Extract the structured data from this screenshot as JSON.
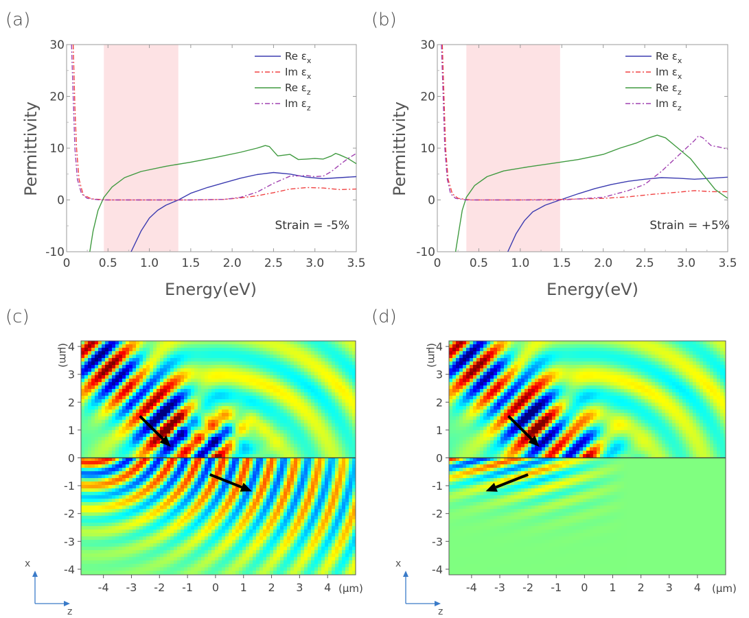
{
  "panels": [
    {
      "id": "a",
      "letter": "(a)",
      "strain_label": "Strain = -5%"
    },
    {
      "id": "b",
      "letter": "(b)",
      "strain_label": "Strain = +5%"
    },
    {
      "id": "c",
      "letter": "(c)"
    },
    {
      "id": "d",
      "letter": "(d)"
    }
  ],
  "colors": {
    "re_x": "#3b3bb0",
    "im_x": "#f04040",
    "re_z": "#3f9a3f",
    "im_z": "#a040b0",
    "band": "#fde2e4",
    "arrow": "#000000"
  },
  "axes_labels": {
    "coord_x": "x",
    "coord_z": "z",
    "unit_top": "(μm)",
    "unit_right": "(μm)"
  },
  "chart_data": [
    {
      "type": "line",
      "panel": "a",
      "xlabel": "Energy(eV)",
      "ylabel": "Permittivity",
      "xlim": [
        0,
        3.5
      ],
      "ylim": [
        -10,
        30
      ],
      "xticks": [
        "0",
        "0.5",
        "1.0",
        "1.5",
        "2.0",
        "2.5",
        "3.0",
        "3.5"
      ],
      "yticks": [
        "-10",
        "0",
        "10",
        "20",
        "30"
      ],
      "highlight_band": [
        0.45,
        1.35
      ],
      "annotation": "Strain = -5%",
      "legend_position": "top-right",
      "series": [
        {
          "name": "Re εx",
          "legend_main": "Re ε",
          "legend_sub": "x",
          "style": "solid",
          "color_key": "re_x",
          "x": [
            0.78,
            0.9,
            1.0,
            1.1,
            1.2,
            1.35,
            1.5,
            1.7,
            1.9,
            2.1,
            2.3,
            2.5,
            2.7,
            2.9,
            3.1,
            3.3,
            3.5
          ],
          "y": [
            -10,
            -6,
            -3.5,
            -2,
            -1,
            0,
            1.3,
            2.4,
            3.3,
            4.2,
            4.9,
            5.3,
            5.0,
            4.4,
            4.1,
            4.3,
            4.5
          ]
        },
        {
          "name": "Im εx",
          "legend_main": "Im ε",
          "legend_sub": "x",
          "style": "dashdot",
          "color_key": "im_x",
          "x": [
            0.08,
            0.1,
            0.12,
            0.15,
            0.2,
            0.3,
            0.5,
            1.0,
            1.5,
            1.9,
            2.1,
            2.3,
            2.5,
            2.7,
            2.9,
            3.1,
            3.3,
            3.5
          ],
          "y": [
            30,
            18,
            10,
            4,
            1,
            0.2,
            0,
            0,
            0,
            0.1,
            0.4,
            0.8,
            1.4,
            2.1,
            2.4,
            2.3,
            2.0,
            2.1
          ]
        },
        {
          "name": "Re εz",
          "legend_main": "Re ε",
          "legend_sub": "z",
          "style": "solid",
          "color_key": "re_z",
          "x": [
            0.28,
            0.32,
            0.38,
            0.45,
            0.55,
            0.7,
            0.9,
            1.2,
            1.5,
            1.8,
            2.1,
            2.3,
            2.4,
            2.45,
            2.55,
            2.7,
            2.8,
            2.9,
            3.0,
            3.1,
            3.2,
            3.25,
            3.3,
            3.4,
            3.5
          ],
          "y": [
            -10,
            -6,
            -2,
            0.5,
            2.5,
            4.3,
            5.5,
            6.5,
            7.3,
            8.2,
            9.2,
            10.0,
            10.5,
            10.3,
            8.5,
            8.8,
            7.8,
            7.9,
            8.0,
            7.9,
            8.5,
            9.0,
            8.7,
            8.0,
            7.0
          ]
        },
        {
          "name": "Im εz",
          "legend_main": "Im ε",
          "legend_sub": "z",
          "style": "dashdot",
          "color_key": "im_z",
          "x": [
            0.06,
            0.08,
            0.1,
            0.13,
            0.18,
            0.25,
            0.4,
            1.0,
            1.5,
            1.9,
            2.1,
            2.3,
            2.5,
            2.7,
            2.9,
            3.0,
            3.1,
            3.2,
            3.3,
            3.4,
            3.5
          ],
          "y": [
            30,
            20,
            10,
            4,
            1.2,
            0.3,
            0,
            0,
            0,
            0.1,
            0.5,
            1.5,
            3.2,
            4.6,
            4.7,
            4.5,
            4.6,
            5.5,
            6.8,
            8.0,
            9.0
          ]
        }
      ]
    },
    {
      "type": "line",
      "panel": "b",
      "xlabel": "Energy(eV)",
      "ylabel": "Permittivity",
      "xlim": [
        0,
        3.5
      ],
      "ylim": [
        -10,
        30
      ],
      "xticks": [
        "0",
        "0.5",
        "1.0",
        "1.5",
        "2.0",
        "2.5",
        "3.0",
        "3.5"
      ],
      "yticks": [
        "-10",
        "0",
        "10",
        "20",
        "30"
      ],
      "highlight_band": [
        0.35,
        1.48
      ],
      "annotation": "Strain = +5%",
      "legend_position": "top-right",
      "series": [
        {
          "name": "Re εx",
          "legend_main": "Re ε",
          "legend_sub": "x",
          "style": "solid",
          "color_key": "re_x",
          "x": [
            0.85,
            0.95,
            1.05,
            1.15,
            1.3,
            1.48,
            1.7,
            1.9,
            2.1,
            2.3,
            2.5,
            2.7,
            2.9,
            3.1,
            3.3,
            3.5
          ],
          "y": [
            -10,
            -6.5,
            -4,
            -2.3,
            -1,
            0,
            1.2,
            2.2,
            3.0,
            3.6,
            4.0,
            4.3,
            4.2,
            4.0,
            4.2,
            4.4
          ]
        },
        {
          "name": "Im εx",
          "legend_main": "Im ε",
          "legend_sub": "x",
          "style": "dashdot",
          "color_key": "im_x",
          "x": [
            0.06,
            0.08,
            0.1,
            0.13,
            0.18,
            0.25,
            0.4,
            1.0,
            1.5,
            2.0,
            2.3,
            2.6,
            2.9,
            3.1,
            3.3,
            3.5
          ],
          "y": [
            30,
            20,
            10,
            4,
            1.2,
            0.3,
            0,
            0,
            0.1,
            0.3,
            0.6,
            1.1,
            1.5,
            1.8,
            1.6,
            1.6
          ]
        },
        {
          "name": "Re εz",
          "legend_main": "Re ε",
          "legend_sub": "z",
          "style": "solid",
          "color_key": "re_z",
          "x": [
            0.22,
            0.26,
            0.3,
            0.35,
            0.45,
            0.6,
            0.8,
            1.1,
            1.4,
            1.7,
            2.0,
            2.2,
            2.4,
            2.55,
            2.65,
            2.75,
            2.9,
            3.05,
            3.2,
            3.35,
            3.5
          ],
          "y": [
            -10,
            -6,
            -2,
            0.5,
            2.8,
            4.5,
            5.6,
            6.4,
            7.1,
            7.8,
            8.8,
            10.0,
            11.0,
            12.0,
            12.5,
            12.0,
            10.0,
            8.0,
            5.0,
            2.0,
            0.3
          ]
        },
        {
          "name": "Im εz",
          "legend_main": "Im ε",
          "legend_sub": "z",
          "style": "dashdot",
          "color_key": "im_z",
          "x": [
            0.05,
            0.07,
            0.09,
            0.12,
            0.16,
            0.22,
            0.35,
            1.0,
            1.5,
            2.0,
            2.3,
            2.5,
            2.7,
            2.9,
            3.0,
            3.1,
            3.15,
            3.2,
            3.3,
            3.4,
            3.5
          ],
          "y": [
            30,
            20,
            10,
            4,
            1.2,
            0.3,
            0,
            0,
            0,
            0.5,
            1.8,
            3.0,
            5.5,
            8.5,
            10.0,
            11.5,
            12.4,
            12.0,
            10.5,
            10.2,
            9.8
          ]
        }
      ]
    },
    {
      "type": "heatmap",
      "panel": "c",
      "xlabel": "(μm)",
      "ylabel": "(μm)",
      "xlim": [
        -4.8,
        5.0
      ],
      "ylim": [
        -4.2,
        4.2
      ],
      "xticks": [
        "-4",
        "-3",
        "-2",
        "-1",
        "0",
        "1",
        "2",
        "3",
        "4"
      ],
      "yticks": [
        "4",
        "3",
        "2",
        "1",
        "0",
        "-1",
        "-2",
        "-3",
        "-4"
      ],
      "interface_z": 0,
      "colormap": "jet",
      "arrows": [
        {
          "from": [
            -2.7,
            1.5
          ],
          "to": [
            -1.6,
            0.4
          ]
        },
        {
          "from": [
            -0.2,
            -0.6
          ],
          "to": [
            1.3,
            -1.2
          ]
        }
      ]
    },
    {
      "type": "heatmap",
      "panel": "d",
      "xlabel": "(μm)",
      "ylabel": "(μm)",
      "xlim": [
        -4.8,
        5.0
      ],
      "ylim": [
        -4.2,
        4.2
      ],
      "xticks": [
        "-4",
        "-3",
        "-2",
        "-1",
        "0",
        "1",
        "2",
        "3",
        "4"
      ],
      "yticks": [
        "4",
        "3",
        "2",
        "1",
        "0",
        "-1",
        "-2",
        "-3",
        "-4"
      ],
      "interface_z": 0,
      "colormap": "jet",
      "arrows": [
        {
          "from": [
            -2.7,
            1.5
          ],
          "to": [
            -1.6,
            0.4
          ]
        },
        {
          "from": [
            -2.0,
            -0.6
          ],
          "to": [
            -3.5,
            -1.2
          ]
        }
      ]
    }
  ]
}
